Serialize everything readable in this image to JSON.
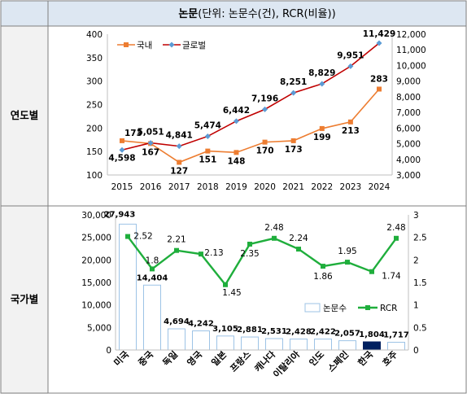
{
  "table": {
    "header_bold": "논문",
    "header_rest": "(단위: 논문수(건), RCR(비율))",
    "row1_label": "연도별",
    "row2_label": "국가별"
  },
  "colors": {
    "header_bg": "#dde7f2",
    "label_bg": "#f2f2f2",
    "border": "#7f7f7f",
    "domestic": "#ed7d31",
    "global": "#c00000",
    "global_marker": "#5b9bd5",
    "bar_fill": "#ffffff",
    "bar_stroke": "#9dc3e6",
    "bar_highlight": "#002060",
    "rcr": "#1fae3c"
  },
  "chart_data": [
    {
      "type": "line",
      "x": [
        "2015",
        "2016",
        "2017",
        "2018",
        "2019",
        "2020",
        "2021",
        "2022",
        "2023",
        "2024"
      ],
      "series": [
        {
          "name": "국내",
          "axis": "left",
          "values": [
            173,
            167,
            127,
            151,
            148,
            170,
            173,
            199,
            213,
            283
          ],
          "labels": [
            "173",
            "167",
            "127",
            "151",
            "148",
            "170",
            "173",
            "199",
            "213",
            "283"
          ]
        },
        {
          "name": "글로벌",
          "axis": "right",
          "values": [
            4598,
            5051,
            4841,
            5474,
            6442,
            7196,
            8251,
            8829,
            9951,
            11429
          ],
          "labels": [
            "4,598",
            "5,051",
            "4,841",
            "5,474",
            "6,442",
            "7,196",
            "8,251",
            "8,829",
            "9,951",
            "11,429"
          ]
        }
      ],
      "y_left": {
        "lim": [
          100,
          400
        ],
        "ticks": [
          "100",
          "150",
          "200",
          "250",
          "300",
          "350",
          "400"
        ]
      },
      "y_right": {
        "lim": [
          3000,
          12000
        ],
        "ticks": [
          "3,000",
          "4,000",
          "5,000",
          "6,000",
          "7,000",
          "8,000",
          "9,000",
          "10,000",
          "11,000",
          "12,000"
        ]
      },
      "legend": "top-left",
      "grid": false
    },
    {
      "type": "bar",
      "categories": [
        "미국",
        "중국",
        "독일",
        "영국",
        "일본",
        "프랑스",
        "캐나다",
        "이탈리아",
        "인도",
        "스페인",
        "한국",
        "호주"
      ],
      "series": [
        {
          "name": "논문수",
          "type": "bar",
          "axis": "left",
          "values": [
            27943,
            14404,
            4694,
            4242,
            3105,
            2881,
            2531,
            2428,
            2422,
            2057,
            1804,
            1717
          ],
          "labels": [
            "27,943",
            "14,404",
            "4,694",
            "4,242",
            "3,105",
            "2,881",
            "2,531",
            "2,428",
            "2,422",
            "2,057",
            "1,804",
            "1,717"
          ],
          "highlight": "한국"
        },
        {
          "name": "RCR",
          "type": "line",
          "axis": "right",
          "values": [
            2.52,
            1.8,
            2.21,
            2.13,
            1.45,
            2.35,
            2.48,
            2.24,
            1.86,
            1.95,
            1.74,
            2.48
          ],
          "labels": [
            "2.52",
            "1.8",
            "2.21",
            "2.13",
            "1.45",
            "2.35",
            "2.48",
            "2.24",
            "1.86",
            "1.95",
            "1.74",
            "2.48"
          ]
        }
      ],
      "y_left": {
        "lim": [
          0,
          30000
        ],
        "ticks": [
          "0",
          "5,000",
          "10,000",
          "15,000",
          "20,000",
          "25,000",
          "30,000"
        ]
      },
      "y_right": {
        "lim": [
          0,
          3
        ],
        "ticks": [
          "0",
          "0.5",
          "1",
          "1.5",
          "2",
          "2.5",
          "3"
        ]
      },
      "legend": "bottom-right",
      "grid": false
    }
  ]
}
